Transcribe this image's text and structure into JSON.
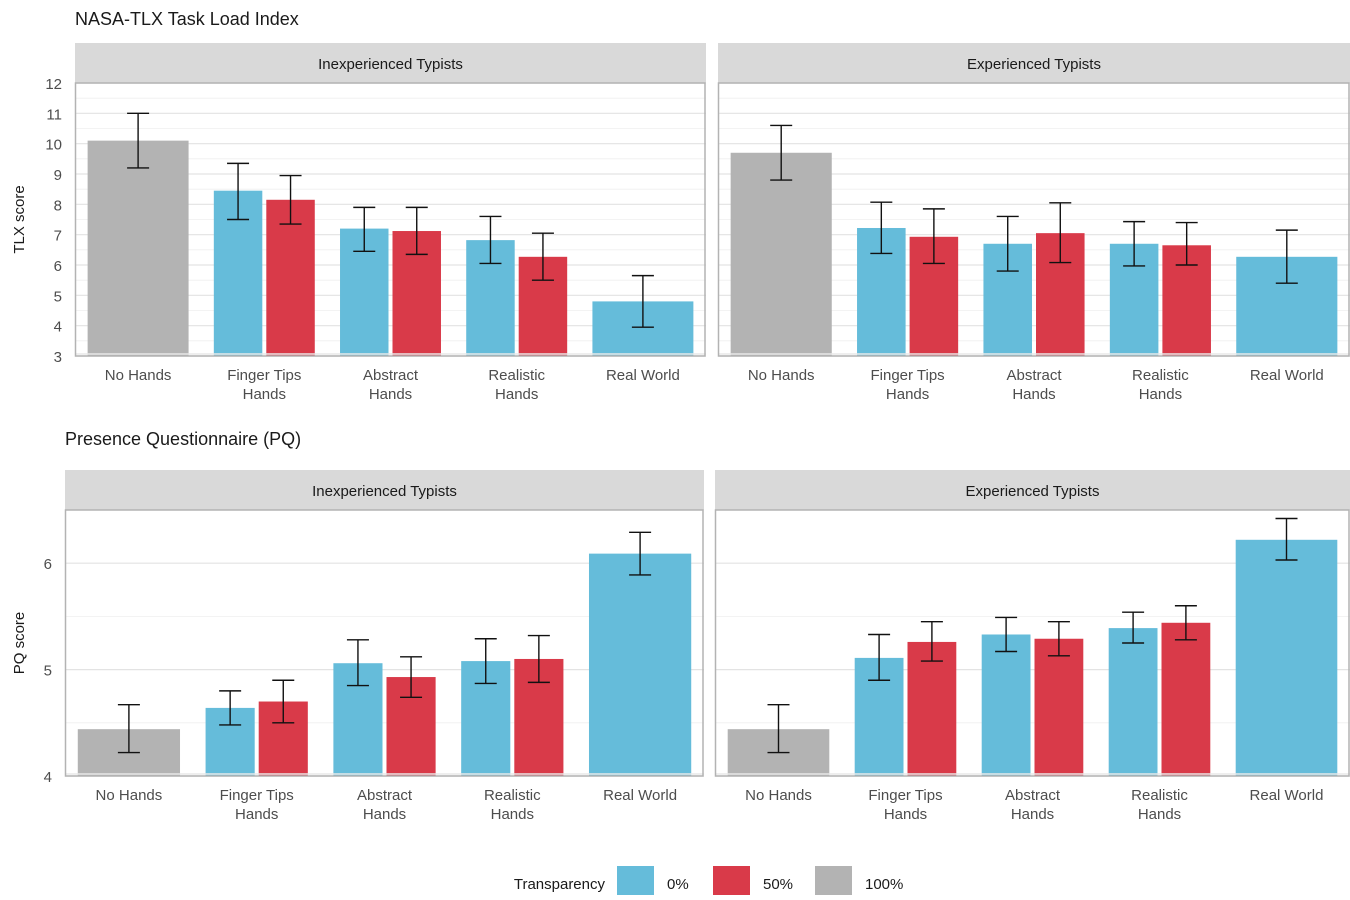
{
  "legend": {
    "title": "Transparency",
    "items": [
      {
        "label": "0%",
        "color": "#65BCDA"
      },
      {
        "label": "50%",
        "color": "#D93A49"
      },
      {
        "label": "100%",
        "color": "#B3B3B3"
      }
    ]
  },
  "chart_data": [
    {
      "type": "bar",
      "title": "NASA-TLX Task Load Index",
      "ylabel": "TLX score",
      "xlabel": "",
      "ylim": [
        3,
        12
      ],
      "yticks": [
        3,
        4,
        5,
        6,
        7,
        8,
        9,
        10,
        11,
        12
      ],
      "grid": true,
      "legend_position": "bottom",
      "categories": [
        "No Hands",
        "Finger Tips\nHands",
        "Abstract\nHands",
        "Realistic\nHands",
        "Real World"
      ],
      "panels": [
        {
          "title": "Inexperienced Typists",
          "bars": [
            {
              "category": 0,
              "transparency": "100%",
              "value": 10.1,
              "low": 9.2,
              "high": 11.0
            },
            {
              "category": 1,
              "transparency": "0%",
              "value": 8.45,
              "low": 7.5,
              "high": 9.35
            },
            {
              "category": 1,
              "transparency": "50%",
              "value": 8.15,
              "low": 7.35,
              "high": 8.95
            },
            {
              "category": 2,
              "transparency": "0%",
              "value": 7.2,
              "low": 6.45,
              "high": 7.9
            },
            {
              "category": 2,
              "transparency": "50%",
              "value": 7.12,
              "low": 6.35,
              "high": 7.9
            },
            {
              "category": 3,
              "transparency": "0%",
              "value": 6.82,
              "low": 6.05,
              "high": 7.6
            },
            {
              "category": 3,
              "transparency": "50%",
              "value": 6.27,
              "low": 5.5,
              "high": 7.05
            },
            {
              "category": 4,
              "transparency": "0%",
              "value": 4.8,
              "low": 3.95,
              "high": 5.65
            }
          ]
        },
        {
          "title": "Experienced Typists",
          "bars": [
            {
              "category": 0,
              "transparency": "100%",
              "value": 9.7,
              "low": 8.8,
              "high": 10.6
            },
            {
              "category": 1,
              "transparency": "0%",
              "value": 7.22,
              "low": 6.38,
              "high": 8.07
            },
            {
              "category": 1,
              "transparency": "50%",
              "value": 6.93,
              "low": 6.05,
              "high": 7.85
            },
            {
              "category": 2,
              "transparency": "0%",
              "value": 6.7,
              "low": 5.8,
              "high": 7.6
            },
            {
              "category": 2,
              "transparency": "50%",
              "value": 7.05,
              "low": 6.08,
              "high": 8.05
            },
            {
              "category": 3,
              "transparency": "0%",
              "value": 6.7,
              "low": 5.97,
              "high": 7.43
            },
            {
              "category": 3,
              "transparency": "50%",
              "value": 6.65,
              "low": 6.0,
              "high": 7.4
            },
            {
              "category": 4,
              "transparency": "0%",
              "value": 6.27,
              "low": 5.4,
              "high": 7.15
            }
          ]
        }
      ]
    },
    {
      "type": "bar",
      "title": "Presence Questionnaire (PQ)",
      "ylabel": "PQ score",
      "xlabel": "",
      "ylim": [
        4,
        6.5
      ],
      "yticks": [
        4,
        5,
        6
      ],
      "grid": true,
      "legend_position": "bottom",
      "categories": [
        "No Hands",
        "Finger Tips\nHands",
        "Abstract\nHands",
        "Realistic\nHands",
        "Real World"
      ],
      "panels": [
        {
          "title": "Inexperienced Typists",
          "bars": [
            {
              "category": 0,
              "transparency": "100%",
              "value": 4.44,
              "low": 4.22,
              "high": 4.67
            },
            {
              "category": 1,
              "transparency": "0%",
              "value": 4.64,
              "low": 4.48,
              "high": 4.8
            },
            {
              "category": 1,
              "transparency": "50%",
              "value": 4.7,
              "low": 4.5,
              "high": 4.9
            },
            {
              "category": 2,
              "transparency": "0%",
              "value": 5.06,
              "low": 4.85,
              "high": 5.28
            },
            {
              "category": 2,
              "transparency": "50%",
              "value": 4.93,
              "low": 4.74,
              "high": 5.12
            },
            {
              "category": 3,
              "transparency": "0%",
              "value": 5.08,
              "low": 4.87,
              "high": 5.29
            },
            {
              "category": 3,
              "transparency": "50%",
              "value": 5.1,
              "low": 4.88,
              "high": 5.32
            },
            {
              "category": 4,
              "transparency": "0%",
              "value": 6.09,
              "low": 5.89,
              "high": 6.29
            }
          ]
        },
        {
          "title": "Experienced Typists",
          "bars": [
            {
              "category": 0,
              "transparency": "100%",
              "value": 4.44,
              "low": 4.22,
              "high": 4.67
            },
            {
              "category": 1,
              "transparency": "0%",
              "value": 5.11,
              "low": 4.9,
              "high": 5.33
            },
            {
              "category": 1,
              "transparency": "50%",
              "value": 5.26,
              "low": 5.08,
              "high": 5.45
            },
            {
              "category": 2,
              "transparency": "0%",
              "value": 5.33,
              "low": 5.17,
              "high": 5.49
            },
            {
              "category": 2,
              "transparency": "50%",
              "value": 5.29,
              "low": 5.13,
              "high": 5.45
            },
            {
              "category": 3,
              "transparency": "0%",
              "value": 5.39,
              "low": 5.25,
              "high": 5.54
            },
            {
              "category": 3,
              "transparency": "50%",
              "value": 5.44,
              "low": 5.28,
              "high": 5.6
            },
            {
              "category": 4,
              "transparency": "0%",
              "value": 6.22,
              "low": 6.03,
              "high": 6.42
            }
          ]
        }
      ]
    }
  ]
}
